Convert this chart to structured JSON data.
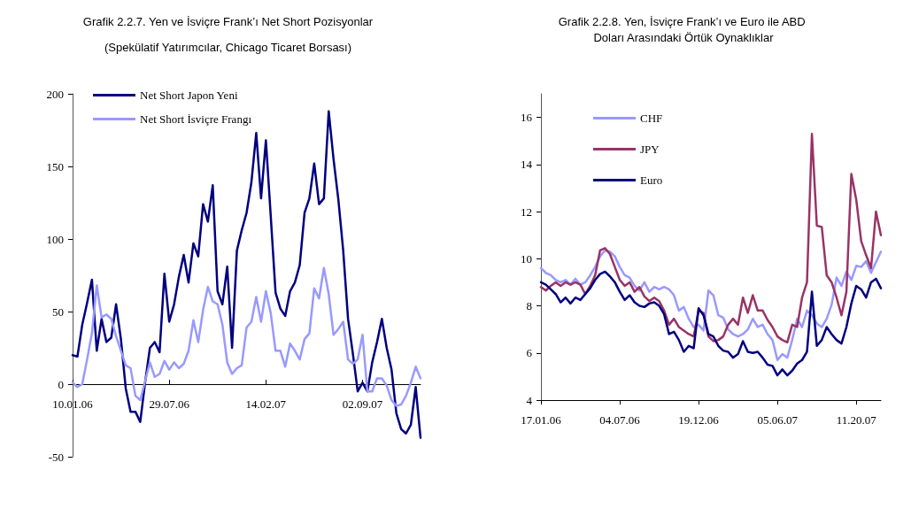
{
  "chart_data": [
    {
      "type": "line",
      "title": "Grafik 2.2.7. Yen ve İsviçre Frank’ı Net Short Pozisyonlar",
      "subtitle": "(Spekülatif Yatırımcılar, Chicago Ticaret Borsası)",
      "categories": [
        "10.01.06",
        null,
        null,
        null,
        null,
        null,
        null,
        null,
        null,
        null,
        null,
        null,
        null,
        null,
        null,
        null,
        null,
        null,
        null,
        null,
        "29.07.06",
        null,
        null,
        null,
        null,
        null,
        null,
        null,
        null,
        null,
        null,
        null,
        null,
        null,
        null,
        null,
        null,
        null,
        null,
        null,
        "14.02.07",
        null,
        null,
        null,
        null,
        null,
        null,
        null,
        null,
        null,
        null,
        null,
        null,
        null,
        null,
        null,
        null,
        null,
        null,
        null,
        "02.09.07",
        null,
        null,
        null,
        null,
        null,
        null,
        null,
        null,
        null,
        null,
        null,
        null
      ],
      "series": [
        {
          "name": "Net Short Japon Yeni",
          "color": "#000080",
          "values": [
            20,
            19,
            41,
            56,
            72,
            23,
            45,
            29,
            32,
            55,
            31,
            -3,
            -19,
            -19,
            -26,
            1,
            25,
            29,
            22,
            76,
            43,
            55,
            74,
            89,
            70,
            97,
            88,
            124,
            112,
            137,
            64,
            55,
            81,
            25,
            92,
            106,
            118,
            139,
            173,
            128,
            168,
            116,
            63,
            52,
            47,
            64,
            70,
            82,
            118,
            128,
            152,
            124,
            128,
            188,
            155,
            127,
            92,
            45,
            21,
            -5,
            1,
            -5,
            15,
            29,
            45,
            25,
            10,
            -20,
            -31,
            -34,
            -28,
            -2,
            -37
          ]
        },
        {
          "name": "Net Short İsviçre Frangı",
          "color": "#9999ff",
          "values": [
            1,
            -2,
            0,
            17,
            35,
            68,
            46,
            48,
            45,
            33,
            23,
            13,
            11,
            -8,
            -11,
            2,
            15,
            5,
            7,
            16,
            10,
            15,
            11,
            14,
            23,
            44,
            29,
            51,
            67,
            57,
            55,
            41,
            15,
            7,
            11,
            13,
            39,
            43,
            60,
            43,
            64,
            49,
            23,
            23,
            12,
            28,
            23,
            17,
            31,
            35,
            66,
            59,
            80,
            62,
            34,
            38,
            43,
            17,
            14,
            17,
            34,
            -5,
            -5,
            4,
            4,
            -1,
            -11,
            -15,
            -14,
            -8,
            1,
            12,
            4
          ]
        }
      ],
      "ylim": [
        -50,
        200
      ],
      "yticks": [
        -50,
        0,
        50,
        100,
        150,
        200
      ],
      "legend": "top left",
      "marker": "none"
    },
    {
      "type": "line",
      "title": "Grafik 2.2.8. Yen, İsviçre Frank’ı ve Euro ile ABD Doları Arasındaki Örtük Oynaklıklar",
      "categories": [
        "17.01.06",
        null,
        null,
        null,
        null,
        null,
        null,
        null,
        null,
        null,
        null,
        null,
        null,
        null,
        null,
        null,
        "04.07.06",
        null,
        null,
        null,
        null,
        null,
        null,
        null,
        null,
        null,
        null,
        null,
        null,
        null,
        null,
        null,
        "19.12.06",
        null,
        null,
        null,
        null,
        null,
        null,
        null,
        null,
        null,
        null,
        null,
        null,
        null,
        null,
        null,
        "05.06.07",
        null,
        null,
        null,
        null,
        null,
        null,
        null,
        null,
        null,
        null,
        null,
        null,
        null,
        null,
        null,
        "11.20.07",
        null,
        null,
        null,
        null,
        null
      ],
      "series": [
        {
          "name": "CHF",
          "color": "#9999ff",
          "values": [
            9.6,
            9.4,
            9.3,
            9.1,
            9.0,
            9.1,
            8.9,
            9.15,
            8.9,
            9.0,
            9.3,
            9.65,
            10.1,
            10.35,
            10.3,
            10.1,
            9.65,
            9.3,
            9.2,
            8.85,
            8.65,
            9.0,
            8.6,
            8.8,
            8.7,
            8.8,
            8.7,
            8.45,
            7.8,
            7.95,
            7.45,
            7.1,
            7.2,
            6.95,
            8.65,
            8.45,
            7.6,
            7.5,
            7.0,
            6.8,
            6.7,
            6.8,
            7.0,
            7.45,
            7.1,
            7.2,
            6.8,
            6.55,
            5.7,
            5.95,
            5.8,
            6.55,
            7.45,
            7.1,
            7.8,
            7.6,
            7.25,
            7.1,
            7.45,
            8.05,
            9.2,
            8.85,
            9.45,
            9.1,
            9.7,
            9.65,
            9.9,
            9.4,
            9.85,
            10.3
          ]
        },
        {
          "name": "JPY",
          "color": "#993366",
          "values": [
            8.8,
            8.65,
            8.85,
            9.0,
            8.85,
            9.0,
            8.9,
            9.0,
            8.9,
            8.5,
            8.85,
            9.3,
            10.35,
            10.45,
            10.2,
            9.65,
            9.1,
            8.85,
            9.0,
            8.6,
            8.8,
            8.4,
            8.2,
            8.35,
            8.2,
            7.8,
            7.2,
            7.45,
            7.1,
            6.95,
            6.8,
            6.7,
            7.8,
            7.7,
            6.7,
            6.5,
            6.55,
            6.7,
            7.2,
            7.45,
            7.2,
            8.35,
            7.7,
            8.45,
            7.8,
            7.8,
            7.4,
            7.1,
            6.7,
            6.55,
            6.45,
            7.2,
            7.1,
            8.35,
            9.0,
            15.3,
            11.4,
            11.35,
            9.3,
            9.0,
            8.35,
            7.6,
            8.6,
            13.6,
            12.5,
            10.75,
            10.15,
            9.6,
            12.0,
            11.0
          ]
        },
        {
          "name": "Euro",
          "color": "#000080",
          "values": [
            9.0,
            8.9,
            8.7,
            8.5,
            8.15,
            8.35,
            8.1,
            8.35,
            8.25,
            8.5,
            8.75,
            9.1,
            9.35,
            9.45,
            9.25,
            9.0,
            8.6,
            8.25,
            8.45,
            8.15,
            8.0,
            7.95,
            8.1,
            8.15,
            8.0,
            7.65,
            6.8,
            6.9,
            6.55,
            6.05,
            6.3,
            6.2,
            7.9,
            7.6,
            6.8,
            6.7,
            6.3,
            6.1,
            6.05,
            5.8,
            5.95,
            6.5,
            6.05,
            6.0,
            6.05,
            5.8,
            5.5,
            5.45,
            5.05,
            5.3,
            5.05,
            5.25,
            5.55,
            5.7,
            6.05,
            8.6,
            6.3,
            6.55,
            7.1,
            6.8,
            6.55,
            6.4,
            7.1,
            8.1,
            8.85,
            8.7,
            8.35,
            9.0,
            9.15,
            8.75
          ]
        }
      ],
      "ylim": [
        4,
        17
      ],
      "yticks": [
        4,
        6,
        8,
        10,
        12,
        14,
        16
      ],
      "grid": false,
      "legend": "top left",
      "marker": "none"
    }
  ]
}
